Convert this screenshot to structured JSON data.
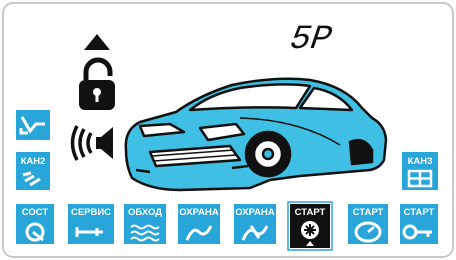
{
  "display": {
    "code": "5P"
  },
  "left_icons": [
    {
      "label": "КАН2"
    }
  ],
  "right_icons": [
    {
      "label": "КАН3"
    }
  ],
  "bottom_icons": [
    {
      "label": "СОСТ"
    },
    {
      "label": "СЕРВИС"
    },
    {
      "label": "ОБХОД"
    },
    {
      "label": "ОХРАНА"
    },
    {
      "label": "ОХРАНА"
    },
    {
      "label": "СТАРТ"
    },
    {
      "label": "СТАРТ"
    },
    {
      "label": "СТАРТ"
    }
  ]
}
